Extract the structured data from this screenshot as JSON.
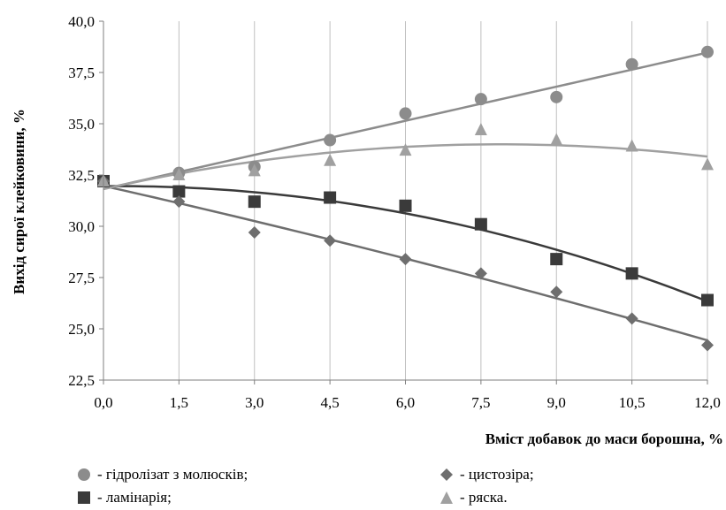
{
  "chart_data": {
    "type": "scatter",
    "title": "",
    "xlabel": "Вміст добавок до маси борошна, %",
    "ylabel": "Вихід сирої клейковини, %",
    "x": [
      0.0,
      1.5,
      3.0,
      4.5,
      6.0,
      7.5,
      9.0,
      10.5,
      12.0
    ],
    "xlim": [
      0,
      12
    ],
    "ylim": [
      22.5,
      40.0
    ],
    "x_ticks": [
      "0,0",
      "1,5",
      "3,0",
      "4,5",
      "6,0",
      "7,5",
      "9,0",
      "10,5",
      "12,0"
    ],
    "y_ticks": [
      "22,5",
      "25,0",
      "27,5",
      "30,0",
      "32,5",
      "35,0",
      "37,5",
      "40,0"
    ],
    "grid": "vertical",
    "legend_position": "bottom",
    "series": [
      {
        "name": "- гідролізат з молюсків;",
        "marker": "circle",
        "color": "#8c8c8c",
        "values": [
          32.2,
          32.6,
          32.9,
          34.2,
          35.5,
          36.2,
          36.3,
          37.9,
          38.5
        ],
        "trend": "linear"
      },
      {
        "name": "- ламінарія;",
        "marker": "square",
        "color": "#3a3a3a",
        "values": [
          32.2,
          31.7,
          31.2,
          31.4,
          31.0,
          30.1,
          28.4,
          27.7,
          26.4
        ],
        "trend": "quadratic"
      },
      {
        "name": "- цистозіра;",
        "marker": "diamond",
        "color": "#6e6e6e",
        "values": [
          32.2,
          31.2,
          29.7,
          29.3,
          28.4,
          27.7,
          26.8,
          25.5,
          24.2
        ],
        "trend": "quadratic"
      },
      {
        "name": "- ряска.",
        "marker": "triangle",
        "color": "#a0a0a0",
        "values": [
          32.2,
          32.5,
          32.7,
          33.2,
          33.7,
          34.7,
          34.2,
          33.9,
          33.0
        ],
        "trend": "quadratic"
      }
    ]
  }
}
